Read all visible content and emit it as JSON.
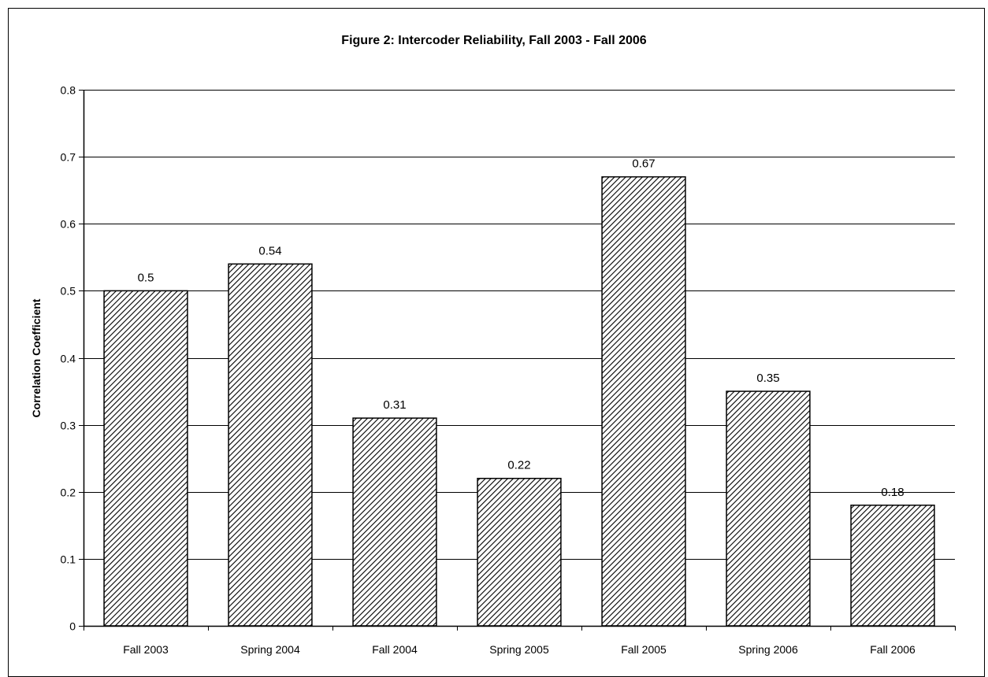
{
  "chart_data": {
    "type": "bar",
    "title": "Figure 2:  Intercoder Reliability, Fall 2003 - Fall 2006",
    "xlabel": "",
    "ylabel": "Correlation Coefficient",
    "categories": [
      "Fall 2003",
      "Spring 2004",
      "Fall 2004",
      "Spring 2005",
      "Fall 2005",
      "Spring 2006",
      "Fall 2006"
    ],
    "values": [
      0.5,
      0.54,
      0.31,
      0.22,
      0.67,
      0.35,
      0.18
    ],
    "data_labels": [
      "0.5",
      "0.54",
      "0.31",
      "0.22",
      "0.67",
      "0.35",
      "0.18"
    ],
    "ylim": [
      0,
      0.8
    ],
    "yticks": [
      "0",
      "0.1",
      "0.2",
      "0.3",
      "0.4",
      "0.5",
      "0.6",
      "0.7",
      "0.8"
    ],
    "grid": true,
    "legend": "none",
    "bar_fill": "diagonal-hatch",
    "colors": {
      "bar_stroke": "#000000",
      "hatch": "#000000",
      "background": "#ffffff",
      "grid": "#000000"
    }
  }
}
